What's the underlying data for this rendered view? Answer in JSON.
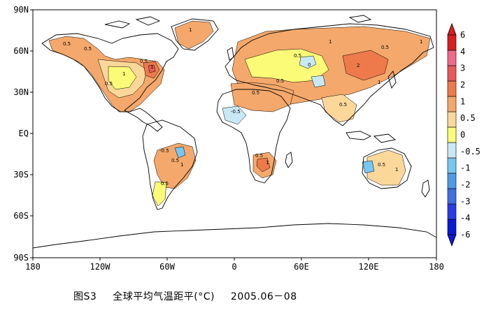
{
  "map": {
    "lat_ticks": [
      "90N",
      "60N",
      "30N",
      "EQ",
      "30S",
      "60S",
      "90S"
    ],
    "lon_ticks": [
      "180",
      "120W",
      "60W",
      "0",
      "60E",
      "120E",
      "180"
    ]
  },
  "colorbar": {
    "levels": [
      "-6",
      "-4",
      "-3",
      "-2",
      "-1",
      "-0.5",
      "0",
      "0.5",
      "1",
      "2",
      "3",
      "4",
      "6"
    ],
    "colors": [
      "#0a1ad6",
      "#2a3be8",
      "#3f6fe0",
      "#4f9be8",
      "#78c6f2",
      "#c9e8f6",
      "#fbfb78",
      "#fbd89a",
      "#f4a86b",
      "#ee7a4c",
      "#e85a5a",
      "#f06a8a",
      "#d81e1e"
    ]
  },
  "contour_labels": [
    "0.5",
    "1",
    "0.5",
    "0.5",
    "1",
    "2",
    "0.5",
    "1",
    "0.5",
    "0",
    "0.5",
    "-0.5",
    "1",
    "0.5",
    "-0.5",
    "0.5",
    "1",
    "0.5",
    "0.5",
    "1",
    "0.5",
    "1",
    "1",
    "0.5",
    "0.5",
    "1"
  ],
  "caption": {
    "figure": "图S3",
    "title": "全球平均气温距平(°C)",
    "period": "2005.06－08"
  }
}
